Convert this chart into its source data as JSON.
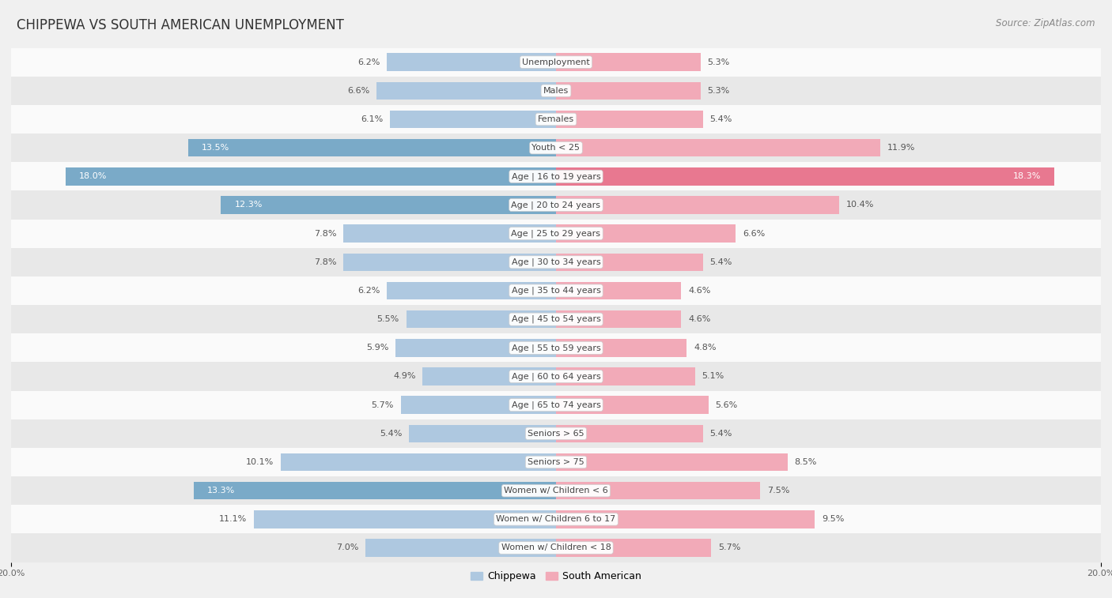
{
  "title": "CHIPPEWA VS SOUTH AMERICAN UNEMPLOYMENT",
  "source": "Source: ZipAtlas.com",
  "categories": [
    "Unemployment",
    "Males",
    "Females",
    "Youth < 25",
    "Age | 16 to 19 years",
    "Age | 20 to 24 years",
    "Age | 25 to 29 years",
    "Age | 30 to 34 years",
    "Age | 35 to 44 years",
    "Age | 45 to 54 years",
    "Age | 55 to 59 years",
    "Age | 60 to 64 years",
    "Age | 65 to 74 years",
    "Seniors > 65",
    "Seniors > 75",
    "Women w/ Children < 6",
    "Women w/ Children 6 to 17",
    "Women w/ Children < 18"
  ],
  "chippewa": [
    6.2,
    6.6,
    6.1,
    13.5,
    18.0,
    12.3,
    7.8,
    7.8,
    6.2,
    5.5,
    5.9,
    4.9,
    5.7,
    5.4,
    10.1,
    13.3,
    11.1,
    7.0
  ],
  "south_american": [
    5.3,
    5.3,
    5.4,
    11.9,
    18.3,
    10.4,
    6.6,
    5.4,
    4.6,
    4.6,
    4.8,
    5.1,
    5.6,
    5.4,
    8.5,
    7.5,
    9.5,
    5.7
  ],
  "chippewa_color": "#aec8e0",
  "south_american_color": "#f2aab8",
  "chippewa_highlight_color": "#7aaac8",
  "south_american_highlight_color": "#e87890",
  "background_color": "#f0f0f0",
  "row_bg_light": "#fafafa",
  "row_bg_dark": "#e8e8e8",
  "xlim": 20.0,
  "bar_height": 0.62,
  "legend_label_chippewa": "Chippewa",
  "legend_label_south_american": "South American",
  "title_fontsize": 12,
  "source_fontsize": 8.5,
  "label_fontsize": 8,
  "category_fontsize": 8,
  "axis_fontsize": 8,
  "highlight_rows": [
    3,
    4,
    5,
    15
  ]
}
